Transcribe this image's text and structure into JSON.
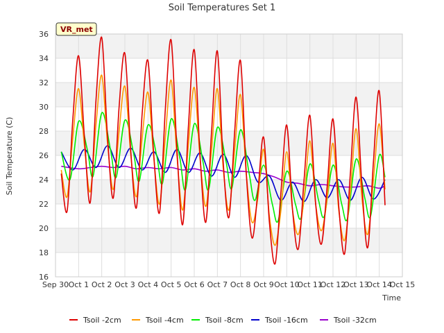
{
  "chart_data": {
    "type": "line",
    "title": "Soil Temperatures Set 1",
    "xlabel": "Time",
    "ylabel": "Soil Temperature (C)",
    "badge": "VR_met",
    "xlim": [
      "2023-09-30",
      "2023-10-15"
    ],
    "ylim": [
      16,
      36
    ],
    "x_ticks": [
      "Sep 30",
      "Oct 1",
      "Oct 2",
      "Oct 3",
      "Oct 4",
      "Oct 5",
      "Oct 6",
      "Oct 7",
      "Oct 8",
      "Oct 9",
      "Oct 10",
      "Oct 11",
      "Oct 12",
      "Oct 13",
      "Oct 14",
      "Oct 15"
    ],
    "y_ticks": [
      16,
      18,
      20,
      22,
      24,
      26,
      28,
      30,
      32,
      34,
      36
    ],
    "grid": true,
    "legend_position": "bottom",
    "series": [
      {
        "name": "Tsoil -2cm",
        "color": "#dd0000",
        "x": [
          "2023-09-30 06:00",
          "2023-09-30 12:00",
          "2023-09-30 18:00",
          "2023-10-01 00:00",
          "2023-10-01 06:00",
          "2023-10-01 12:00",
          "2023-10-01 18:00",
          "2023-10-02 00:00",
          "2023-10-02 06:00",
          "2023-10-02 12:00",
          "2023-10-02 18:00",
          "2023-10-03 00:00",
          "2023-10-03 06:00",
          "2023-10-03 12:00",
          "2023-10-03 18:00",
          "2023-10-04 00:00",
          "2023-10-04 06:00",
          "2023-10-04 12:00",
          "2023-10-04 18:00",
          "2023-10-05 00:00",
          "2023-10-05 06:00",
          "2023-10-05 12:00",
          "2023-10-05 18:00",
          "2023-10-06 00:00",
          "2023-10-06 06:00",
          "2023-10-06 12:00",
          "2023-10-06 18:00",
          "2023-10-07 00:00",
          "2023-10-07 06:00",
          "2023-10-07 12:00",
          "2023-10-07 18:00",
          "2023-10-08 00:00",
          "2023-10-08 06:00",
          "2023-10-08 12:00",
          "2023-10-08 18:00",
          "2023-10-09 00:00",
          "2023-10-09 06:00",
          "2023-10-09 12:00",
          "2023-10-09 18:00",
          "2023-10-10 00:00",
          "2023-10-10 06:00",
          "2023-10-10 12:00",
          "2023-10-10 18:00",
          "2023-10-11 00:00",
          "2023-10-11 06:00",
          "2023-10-11 12:00",
          "2023-10-11 18:00",
          "2023-10-12 00:00",
          "2023-10-12 06:00",
          "2023-10-12 12:00",
          "2023-10-12 18:00",
          "2023-10-13 00:00",
          "2023-10-13 06:00",
          "2023-10-13 12:00",
          "2023-10-13 18:00",
          "2023-10-14 00:00",
          "2023-10-14 06:00"
        ],
        "values": [
          24.5,
          21.4,
          29.0,
          34.2,
          27.5,
          22.1,
          30.5,
          35.7,
          27.5,
          22.5,
          30.0,
          34.4,
          26.5,
          21.7,
          29.5,
          33.8,
          26.0,
          21.3,
          29.8,
          35.5,
          26.5,
          20.3,
          28.5,
          34.7,
          26.0,
          20.5,
          28.0,
          34.6,
          25.5,
          20.9,
          28.0,
          33.8,
          24.5,
          19.2,
          23.0,
          27.5,
          20.5,
          17.1,
          23.0,
          28.5,
          21.5,
          18.3,
          24.0,
          29.3,
          22.0,
          18.7,
          23.5,
          29.0,
          21.8,
          17.9,
          24.5,
          30.8,
          23.5,
          18.4,
          25.5,
          31.3,
          21.9
        ]
      },
      {
        "name": "Tsoil -4cm",
        "color": "#ff9900",
        "x": [
          "2023-09-30 06:00",
          "2023-09-30 12:00",
          "2023-09-30 18:00",
          "2023-10-01 00:00",
          "2023-10-01 06:00",
          "2023-10-01 12:00",
          "2023-10-01 18:00",
          "2023-10-02 00:00",
          "2023-10-02 06:00",
          "2023-10-02 12:00",
          "2023-10-02 18:00",
          "2023-10-03 00:00",
          "2023-10-03 06:00",
          "2023-10-03 12:00",
          "2023-10-03 18:00",
          "2023-10-04 00:00",
          "2023-10-04 06:00",
          "2023-10-04 12:00",
          "2023-10-04 18:00",
          "2023-10-05 00:00",
          "2023-10-05 06:00",
          "2023-10-05 12:00",
          "2023-10-05 18:00",
          "2023-10-06 00:00",
          "2023-10-06 06:00",
          "2023-10-06 12:00",
          "2023-10-06 18:00",
          "2023-10-07 00:00",
          "2023-10-07 06:00",
          "2023-10-07 12:00",
          "2023-10-07 18:00",
          "2023-10-08 00:00",
          "2023-10-08 06:00",
          "2023-10-08 12:00",
          "2023-10-08 18:00",
          "2023-10-09 00:00",
          "2023-10-09 06:00",
          "2023-10-09 12:00",
          "2023-10-09 18:00",
          "2023-10-10 00:00",
          "2023-10-10 06:00",
          "2023-10-10 12:00",
          "2023-10-10 18:00",
          "2023-10-11 00:00",
          "2023-10-11 06:00",
          "2023-10-11 12:00",
          "2023-10-11 18:00",
          "2023-10-12 00:00",
          "2023-10-12 06:00",
          "2023-10-12 12:00",
          "2023-10-12 18:00",
          "2023-10-13 00:00",
          "2023-10-13 06:00",
          "2023-10-13 12:00",
          "2023-10-13 18:00",
          "2023-10-14 00:00",
          "2023-10-14 06:00"
        ],
        "values": [
          24.8,
          22.6,
          27.5,
          31.5,
          26.8,
          23.0,
          28.5,
          32.6,
          27.0,
          23.2,
          28.0,
          31.7,
          26.2,
          22.6,
          27.5,
          31.2,
          25.8,
          22.0,
          27.5,
          32.2,
          26.0,
          21.5,
          27.0,
          31.6,
          25.8,
          21.8,
          26.5,
          31.5,
          25.0,
          21.5,
          26.5,
          31.0,
          24.5,
          20.5,
          22.5,
          26.5,
          21.0,
          18.6,
          21.5,
          26.3,
          21.5,
          19.5,
          22.5,
          27.2,
          22.0,
          19.8,
          22.5,
          27.0,
          21.5,
          19.0,
          23.0,
          28.2,
          22.5,
          19.5,
          24.0,
          28.6,
          23.2
        ]
      },
      {
        "name": "Tsoil -8cm",
        "color": "#00ee00",
        "x": [
          "2023-09-30 06:00",
          "2023-09-30 15:00",
          "2023-10-01 00:00",
          "2023-10-01 09:00",
          "2023-10-01 15:00",
          "2023-10-02 00:00",
          "2023-10-02 09:00",
          "2023-10-02 15:00",
          "2023-10-03 00:00",
          "2023-10-03 09:00",
          "2023-10-03 15:00",
          "2023-10-04 00:00",
          "2023-10-04 09:00",
          "2023-10-04 15:00",
          "2023-10-05 00:00",
          "2023-10-05 09:00",
          "2023-10-05 15:00",
          "2023-10-06 00:00",
          "2023-10-06 09:00",
          "2023-10-06 15:00",
          "2023-10-07 00:00",
          "2023-10-07 09:00",
          "2023-10-07 15:00",
          "2023-10-08 00:00",
          "2023-10-08 09:00",
          "2023-10-08 15:00",
          "2023-10-09 00:00",
          "2023-10-09 09:00",
          "2023-10-09 15:00",
          "2023-10-10 00:00",
          "2023-10-10 09:00",
          "2023-10-10 15:00",
          "2023-10-11 00:00",
          "2023-10-11 09:00",
          "2023-10-11 15:00",
          "2023-10-12 00:00",
          "2023-10-12 09:00",
          "2023-10-12 15:00",
          "2023-10-13 00:00",
          "2023-10-13 09:00",
          "2023-10-13 15:00",
          "2023-10-14 00:00",
          "2023-10-14 06:00"
        ],
        "values": [
          26.3,
          24.0,
          28.8,
          26.5,
          24.3,
          29.5,
          26.5,
          24.2,
          28.9,
          26.2,
          23.9,
          28.5,
          26.0,
          23.7,
          29.0,
          25.8,
          23.2,
          28.6,
          25.5,
          23.2,
          28.3,
          25.5,
          23.3,
          28.1,
          24.5,
          22.3,
          25.2,
          22.0,
          20.6,
          24.7,
          22.0,
          20.9,
          25.3,
          22.3,
          21.0,
          25.2,
          22.0,
          20.8,
          25.7,
          22.5,
          21.0,
          26.0,
          24.2
        ]
      },
      {
        "name": "Tsoil -16cm",
        "color": "#0000cc",
        "x": [
          "2023-09-30 06:00",
          "2023-09-30 18:00",
          "2023-10-01 06:00",
          "2023-10-01 18:00",
          "2023-10-02 06:00",
          "2023-10-02 18:00",
          "2023-10-03 06:00",
          "2023-10-03 18:00",
          "2023-10-04 06:00",
          "2023-10-04 18:00",
          "2023-10-05 06:00",
          "2023-10-05 18:00",
          "2023-10-06 06:00",
          "2023-10-06 18:00",
          "2023-10-07 06:00",
          "2023-10-07 18:00",
          "2023-10-08 06:00",
          "2023-10-08 18:00",
          "2023-10-09 06:00",
          "2023-10-09 18:00",
          "2023-10-10 06:00",
          "2023-10-10 18:00",
          "2023-10-11 06:00",
          "2023-10-11 18:00",
          "2023-10-12 06:00",
          "2023-10-12 18:00",
          "2023-10-13 06:00",
          "2023-10-13 18:00",
          "2023-10-14 06:00"
        ],
        "values": [
          26.3,
          24.8,
          26.5,
          25.0,
          26.8,
          25.0,
          26.6,
          24.8,
          26.3,
          24.6,
          26.5,
          24.6,
          26.2,
          24.3,
          26.1,
          24.2,
          26.0,
          23.8,
          24.3,
          22.3,
          23.8,
          22.2,
          24.0,
          22.5,
          24.0,
          22.3,
          24.2,
          22.4,
          24.0
        ]
      },
      {
        "name": "Tsoil -32cm",
        "color": "#9900cc",
        "x": [
          "2023-09-30 06:00",
          "2023-10-01 00:00",
          "2023-10-01 12:00",
          "2023-10-02 00:00",
          "2023-10-02 12:00",
          "2023-10-03 00:00",
          "2023-10-03 12:00",
          "2023-10-04 00:00",
          "2023-10-04 12:00",
          "2023-10-05 00:00",
          "2023-10-05 12:00",
          "2023-10-06 00:00",
          "2023-10-06 12:00",
          "2023-10-07 00:00",
          "2023-10-07 12:00",
          "2023-10-08 00:00",
          "2023-10-08 12:00",
          "2023-10-09 00:00",
          "2023-10-09 12:00",
          "2023-10-10 00:00",
          "2023-10-10 12:00",
          "2023-10-11 00:00",
          "2023-10-11 12:00",
          "2023-10-12 00:00",
          "2023-10-12 12:00",
          "2023-10-13 00:00",
          "2023-10-13 12:00",
          "2023-10-14 00:00",
          "2023-10-14 06:00"
        ],
        "values": [
          25.1,
          24.9,
          25.0,
          25.1,
          25.0,
          25.1,
          24.9,
          25.0,
          24.9,
          25.0,
          24.8,
          24.9,
          24.7,
          24.8,
          24.6,
          24.7,
          24.6,
          24.5,
          24.2,
          23.8,
          23.7,
          23.5,
          23.6,
          23.5,
          23.4,
          23.4,
          23.5,
          23.3,
          23.5
        ]
      }
    ]
  }
}
